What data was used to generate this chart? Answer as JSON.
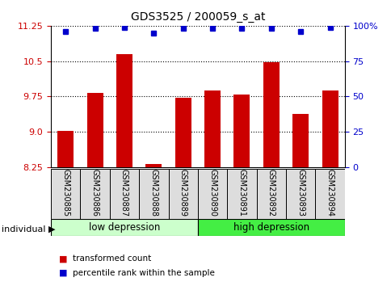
{
  "title": "GDS3525 / 200059_s_at",
  "samples": [
    "GSM230885",
    "GSM230886",
    "GSM230887",
    "GSM230888",
    "GSM230889",
    "GSM230890",
    "GSM230891",
    "GSM230892",
    "GSM230893",
    "GSM230894"
  ],
  "bar_values": [
    9.02,
    9.82,
    10.65,
    8.32,
    9.72,
    9.87,
    9.8,
    10.48,
    9.38,
    9.88
  ],
  "percentile_values": [
    96,
    98,
    99,
    95,
    98,
    98,
    98,
    98,
    96,
    99
  ],
  "ymin": 8.25,
  "ymax": 11.25,
  "yticks": [
    8.25,
    9.0,
    9.75,
    10.5,
    11.25
  ],
  "bar_color": "#cc0000",
  "dot_color": "#0000cc",
  "group1_label": "low depression",
  "group2_label": "high depression",
  "group1_count": 5,
  "group2_count": 5,
  "group1_bg": "#ccffcc",
  "group2_bg": "#44ee44",
  "sample_bg": "#dddddd",
  "right_yticks": [
    0,
    25,
    50,
    75,
    100
  ],
  "right_yticklabels": [
    "0",
    "25",
    "50",
    "75",
    "100%"
  ],
  "legend_red": "transformed count",
  "legend_blue": "percentile rank within the sample",
  "individual_label": "individual"
}
